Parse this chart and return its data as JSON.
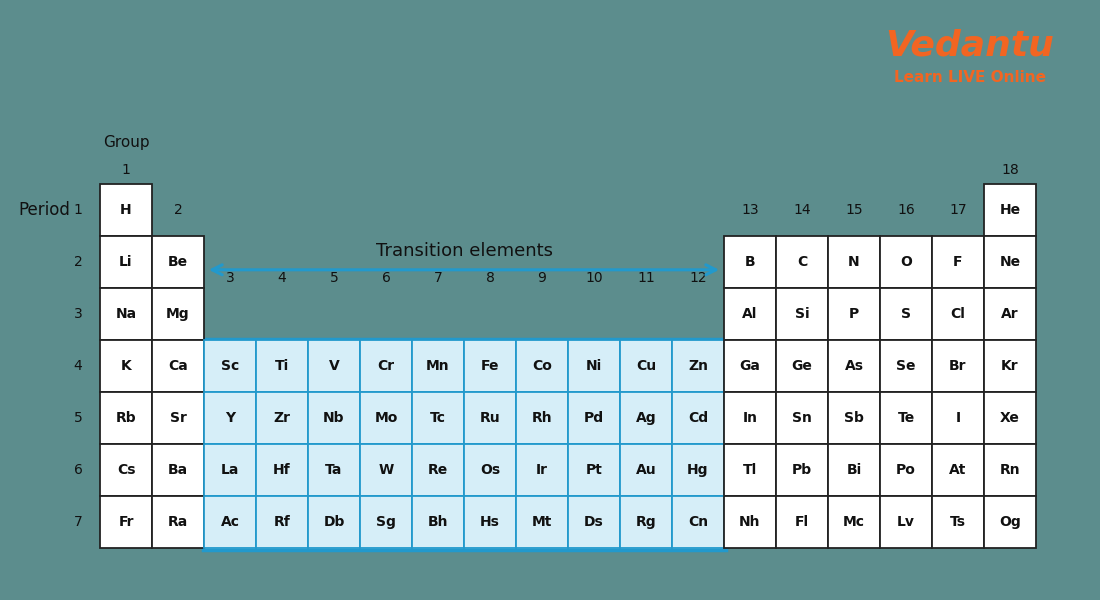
{
  "bg_color": "#5c8d8d",
  "cell_bg_white": "#ffffff",
  "cell_bg_gray": "#d0d0d0",
  "cell_bg_transition": "#d6eef8",
  "cell_border_dark": "#222222",
  "cell_border_transition": "#2299cc",
  "transition_arrow_color": "#2299cc",
  "vedantu_color": "#f26522",
  "text_color_dark": "#111111",
  "period_label": "Period",
  "group_label": "Group",
  "transition_label": "Transition elements",
  "elements": [
    {
      "symbol": "H",
      "period": 1,
      "group": 1,
      "transition": false,
      "style": "white_border"
    },
    {
      "symbol": "He",
      "period": 1,
      "group": 18,
      "transition": false,
      "style": "white_border"
    },
    {
      "symbol": "Li",
      "period": 2,
      "group": 1,
      "transition": false,
      "style": "white_border"
    },
    {
      "symbol": "Be",
      "period": 2,
      "group": 2,
      "transition": false,
      "style": "white_border"
    },
    {
      "symbol": "B",
      "period": 2,
      "group": 13,
      "transition": false,
      "style": "white_border"
    },
    {
      "symbol": "C",
      "period": 2,
      "group": 14,
      "transition": false,
      "style": "white_border"
    },
    {
      "symbol": "N",
      "period": 2,
      "group": 15,
      "transition": false,
      "style": "white_border"
    },
    {
      "symbol": "O",
      "period": 2,
      "group": 16,
      "transition": false,
      "style": "white_border"
    },
    {
      "symbol": "F",
      "period": 2,
      "group": 17,
      "transition": false,
      "style": "white_border"
    },
    {
      "symbol": "Ne",
      "period": 2,
      "group": 18,
      "transition": false,
      "style": "white_border"
    },
    {
      "symbol": "Na",
      "period": 3,
      "group": 1,
      "transition": false,
      "style": "white_border"
    },
    {
      "symbol": "Mg",
      "period": 3,
      "group": 2,
      "transition": false,
      "style": "white_border"
    },
    {
      "symbol": "Al",
      "period": 3,
      "group": 13,
      "transition": false,
      "style": "white_border"
    },
    {
      "symbol": "Si",
      "period": 3,
      "group": 14,
      "transition": false,
      "style": "white_border"
    },
    {
      "symbol": "P",
      "period": 3,
      "group": 15,
      "transition": false,
      "style": "white_border"
    },
    {
      "symbol": "S",
      "period": 3,
      "group": 16,
      "transition": false,
      "style": "white_border"
    },
    {
      "symbol": "Cl",
      "period": 3,
      "group": 17,
      "transition": false,
      "style": "white_border"
    },
    {
      "symbol": "Ar",
      "period": 3,
      "group": 18,
      "transition": false,
      "style": "white_border"
    },
    {
      "symbol": "K",
      "period": 4,
      "group": 1,
      "transition": false,
      "style": "white_border"
    },
    {
      "symbol": "Ca",
      "period": 4,
      "group": 2,
      "transition": false,
      "style": "white_border"
    },
    {
      "symbol": "Sc",
      "period": 4,
      "group": 3,
      "transition": true,
      "style": "blue_border"
    },
    {
      "symbol": "Ti",
      "period": 4,
      "group": 4,
      "transition": true,
      "style": "blue_border"
    },
    {
      "symbol": "V",
      "period": 4,
      "group": 5,
      "transition": true,
      "style": "blue_border"
    },
    {
      "symbol": "Cr",
      "period": 4,
      "group": 6,
      "transition": true,
      "style": "blue_border"
    },
    {
      "symbol": "Mn",
      "period": 4,
      "group": 7,
      "transition": true,
      "style": "blue_border"
    },
    {
      "symbol": "Fe",
      "period": 4,
      "group": 8,
      "transition": true,
      "style": "blue_border"
    },
    {
      "symbol": "Co",
      "period": 4,
      "group": 9,
      "transition": true,
      "style": "blue_border"
    },
    {
      "symbol": "Ni",
      "period": 4,
      "group": 10,
      "transition": true,
      "style": "blue_border"
    },
    {
      "symbol": "Cu",
      "period": 4,
      "group": 11,
      "transition": true,
      "style": "blue_border"
    },
    {
      "symbol": "Zn",
      "period": 4,
      "group": 12,
      "transition": true,
      "style": "blue_border"
    },
    {
      "symbol": "Ga",
      "period": 4,
      "group": 13,
      "transition": false,
      "style": "white_border"
    },
    {
      "symbol": "Ge",
      "period": 4,
      "group": 14,
      "transition": false,
      "style": "white_border"
    },
    {
      "symbol": "As",
      "period": 4,
      "group": 15,
      "transition": false,
      "style": "white_border"
    },
    {
      "symbol": "Se",
      "period": 4,
      "group": 16,
      "transition": false,
      "style": "white_border"
    },
    {
      "symbol": "Br",
      "period": 4,
      "group": 17,
      "transition": false,
      "style": "white_border"
    },
    {
      "symbol": "Kr",
      "period": 4,
      "group": 18,
      "transition": false,
      "style": "white_border"
    },
    {
      "symbol": "Rb",
      "period": 5,
      "group": 1,
      "transition": false,
      "style": "white_border"
    },
    {
      "symbol": "Sr",
      "period": 5,
      "group": 2,
      "transition": false,
      "style": "white_border"
    },
    {
      "symbol": "Y",
      "period": 5,
      "group": 3,
      "transition": true,
      "style": "blue_border"
    },
    {
      "symbol": "Zr",
      "period": 5,
      "group": 4,
      "transition": true,
      "style": "blue_border"
    },
    {
      "symbol": "Nb",
      "period": 5,
      "group": 5,
      "transition": true,
      "style": "blue_border"
    },
    {
      "symbol": "Mo",
      "period": 5,
      "group": 6,
      "transition": true,
      "style": "blue_border"
    },
    {
      "symbol": "Tc",
      "period": 5,
      "group": 7,
      "transition": true,
      "style": "blue_border"
    },
    {
      "symbol": "Ru",
      "period": 5,
      "group": 8,
      "transition": true,
      "style": "blue_border"
    },
    {
      "symbol": "Rh",
      "period": 5,
      "group": 9,
      "transition": true,
      "style": "blue_border"
    },
    {
      "symbol": "Pd",
      "period": 5,
      "group": 10,
      "transition": true,
      "style": "blue_border"
    },
    {
      "symbol": "Ag",
      "period": 5,
      "group": 11,
      "transition": true,
      "style": "blue_border"
    },
    {
      "symbol": "Cd",
      "period": 5,
      "group": 12,
      "transition": true,
      "style": "blue_border"
    },
    {
      "symbol": "In",
      "period": 5,
      "group": 13,
      "transition": false,
      "style": "white_border"
    },
    {
      "symbol": "Sn",
      "period": 5,
      "group": 14,
      "transition": false,
      "style": "white_border"
    },
    {
      "symbol": "Sb",
      "period": 5,
      "group": 15,
      "transition": false,
      "style": "white_border"
    },
    {
      "symbol": "Te",
      "period": 5,
      "group": 16,
      "transition": false,
      "style": "white_border"
    },
    {
      "symbol": "I",
      "period": 5,
      "group": 17,
      "transition": false,
      "style": "white_border"
    },
    {
      "symbol": "Xe",
      "period": 5,
      "group": 18,
      "transition": false,
      "style": "white_border"
    },
    {
      "symbol": "Cs",
      "period": 6,
      "group": 1,
      "transition": false,
      "style": "white_border"
    },
    {
      "symbol": "Ba",
      "period": 6,
      "group": 2,
      "transition": false,
      "style": "white_border"
    },
    {
      "symbol": "La",
      "period": 6,
      "group": 3,
      "transition": true,
      "style": "blue_border"
    },
    {
      "symbol": "Hf",
      "period": 6,
      "group": 4,
      "transition": true,
      "style": "blue_border"
    },
    {
      "symbol": "Ta",
      "period": 6,
      "group": 5,
      "transition": true,
      "style": "blue_border"
    },
    {
      "symbol": "W",
      "period": 6,
      "group": 6,
      "transition": true,
      "style": "blue_border"
    },
    {
      "symbol": "Re",
      "period": 6,
      "group": 7,
      "transition": true,
      "style": "blue_border"
    },
    {
      "symbol": "Os",
      "period": 6,
      "group": 8,
      "transition": true,
      "style": "blue_border"
    },
    {
      "symbol": "Ir",
      "period": 6,
      "group": 9,
      "transition": true,
      "style": "blue_border"
    },
    {
      "symbol": "Pt",
      "period": 6,
      "group": 10,
      "transition": true,
      "style": "blue_border"
    },
    {
      "symbol": "Au",
      "period": 6,
      "group": 11,
      "transition": true,
      "style": "blue_border"
    },
    {
      "symbol": "Hg",
      "period": 6,
      "group": 12,
      "transition": true,
      "style": "blue_border"
    },
    {
      "symbol": "Tl",
      "period": 6,
      "group": 13,
      "transition": false,
      "style": "white_border"
    },
    {
      "symbol": "Pb",
      "period": 6,
      "group": 14,
      "transition": false,
      "style": "white_border"
    },
    {
      "symbol": "Bi",
      "period": 6,
      "group": 15,
      "transition": false,
      "style": "white_border"
    },
    {
      "symbol": "Po",
      "period": 6,
      "group": 16,
      "transition": false,
      "style": "white_border"
    },
    {
      "symbol": "At",
      "period": 6,
      "group": 17,
      "transition": false,
      "style": "white_border"
    },
    {
      "symbol": "Rn",
      "period": 6,
      "group": 18,
      "transition": false,
      "style": "white_border"
    },
    {
      "symbol": "Fr",
      "period": 7,
      "group": 1,
      "transition": false,
      "style": "white_border"
    },
    {
      "symbol": "Ra",
      "period": 7,
      "group": 2,
      "transition": false,
      "style": "white_border"
    },
    {
      "symbol": "Ac",
      "period": 7,
      "group": 3,
      "transition": true,
      "style": "blue_border"
    },
    {
      "symbol": "Rf",
      "period": 7,
      "group": 4,
      "transition": true,
      "style": "blue_border"
    },
    {
      "symbol": "Db",
      "period": 7,
      "group": 5,
      "transition": true,
      "style": "blue_border"
    },
    {
      "symbol": "Sg",
      "period": 7,
      "group": 6,
      "transition": true,
      "style": "blue_border"
    },
    {
      "symbol": "Bh",
      "period": 7,
      "group": 7,
      "transition": true,
      "style": "blue_border"
    },
    {
      "symbol": "Hs",
      "period": 7,
      "group": 8,
      "transition": true,
      "style": "blue_border"
    },
    {
      "symbol": "Mt",
      "period": 7,
      "group": 9,
      "transition": true,
      "style": "blue_border"
    },
    {
      "symbol": "Ds",
      "period": 7,
      "group": 10,
      "transition": true,
      "style": "blue_border"
    },
    {
      "symbol": "Rg",
      "period": 7,
      "group": 11,
      "transition": true,
      "style": "blue_border"
    },
    {
      "symbol": "Cn",
      "period": 7,
      "group": 12,
      "transition": true,
      "style": "blue_border"
    },
    {
      "symbol": "Nh",
      "period": 7,
      "group": 13,
      "transition": false,
      "style": "white_border"
    },
    {
      "symbol": "Fl",
      "period": 7,
      "group": 14,
      "transition": false,
      "style": "white_border"
    },
    {
      "symbol": "Mc",
      "period": 7,
      "group": 15,
      "transition": false,
      "style": "white_border"
    },
    {
      "symbol": "Lv",
      "period": 7,
      "group": 16,
      "transition": false,
      "style": "white_border"
    },
    {
      "symbol": "Ts",
      "period": 7,
      "group": 17,
      "transition": false,
      "style": "white_border"
    },
    {
      "symbol": "Og",
      "period": 7,
      "group": 18,
      "transition": false,
      "style": "white_border"
    }
  ]
}
